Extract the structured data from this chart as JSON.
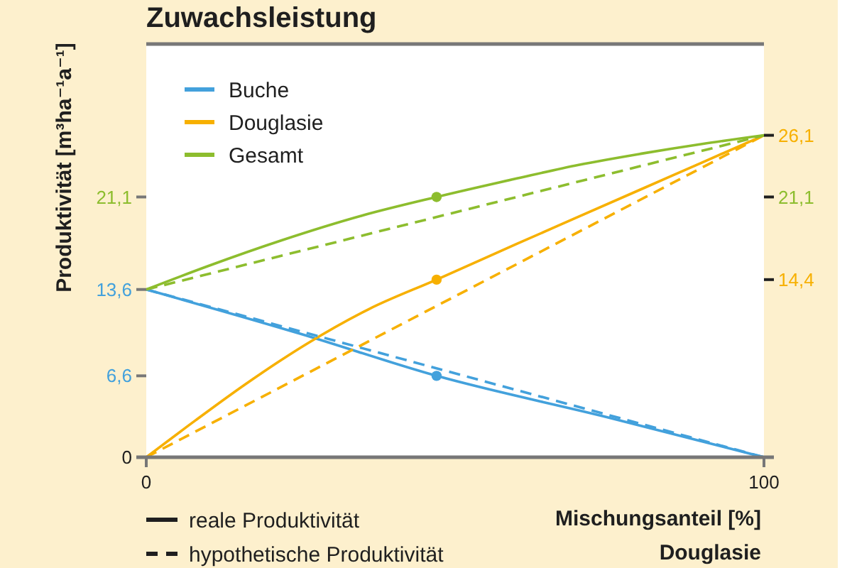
{
  "chart_data": {
    "type": "line",
    "title": "Zuwachsleistung",
    "xlabel": "Mischungsanteil [%]\nDouglasie",
    "ylabel": "Produktivität [m³ha⁻¹a⁻¹]",
    "xlim": [
      0,
      100
    ],
    "xticks": [
      0,
      100
    ],
    "ylim": [
      0,
      33.5
    ],
    "yticks": [
      0,
      {
        "value": 6.6,
        "label": "6,6"
      },
      {
        "value": 13.6,
        "label": "13,6"
      },
      {
        "value": 21.1,
        "label": "21,1"
      }
    ],
    "y2lim": [
      0,
      33.5
    ],
    "y2ticks": [
      {
        "value": 14.4,
        "label": "14,4"
      },
      {
        "value": 21.1,
        "label": "21,1"
      },
      {
        "value": 26.1,
        "label": "26,1"
      }
    ],
    "legend": "top left",
    "annotations": [
      "reale Produktivität",
      "hypothetische Produktivität"
    ],
    "series": [
      {
        "name": "Buche",
        "color": "#43a1dc",
        "line_style": "solid",
        "x": [
          0,
          25,
          47,
          75,
          100
        ],
        "values": [
          13.6,
          10.0,
          6.6,
          3.2,
          0
        ]
      },
      {
        "name": "Douglasie",
        "color": "#f7b000",
        "line_style": "solid",
        "x": [
          0,
          8,
          16,
          26,
          36,
          47,
          60,
          70,
          80,
          90,
          100
        ],
        "values": [
          0,
          3.0,
          5.9,
          9.2,
          12.0,
          14.4,
          17.3,
          19.5,
          21.7,
          23.9,
          26.1
        ]
      },
      {
        "name": "Gesamt",
        "color": "#8dbd2e",
        "line_style": "solid",
        "x": [
          0,
          10,
          22,
          35,
          47,
          60,
          70,
          80,
          90,
          100
        ],
        "values": [
          13.6,
          15.5,
          17.6,
          19.6,
          21.1,
          22.6,
          23.7,
          24.6,
          25.4,
          26.1
        ]
      },
      {
        "color": "#43a1dc",
        "line_style": "dashed",
        "x": [
          0,
          100
        ],
        "values": [
          13.6,
          0
        ]
      },
      {
        "color": "#f7b000",
        "line_style": "dashed",
        "x": [
          0,
          100
        ],
        "values": [
          0,
          26.1
        ]
      },
      {
        "color": "#8dbd2e",
        "line_style": "dashed",
        "x": [
          0,
          100
        ],
        "values": [
          13.6,
          26.1
        ]
      },
      {
        "type": "scatter",
        "color": "#43a1dc",
        "marker": "circle",
        "x": [
          47
        ],
        "values": [
          6.6
        ]
      },
      {
        "type": "scatter",
        "color": "#f7b000",
        "marker": "circle",
        "x": [
          47
        ],
        "values": [
          14.4
        ]
      },
      {
        "type": "scatter",
        "color": "#8dbd2e",
        "marker": "circle",
        "x": [
          47
        ],
        "values": [
          21.1
        ]
      }
    ]
  }
}
